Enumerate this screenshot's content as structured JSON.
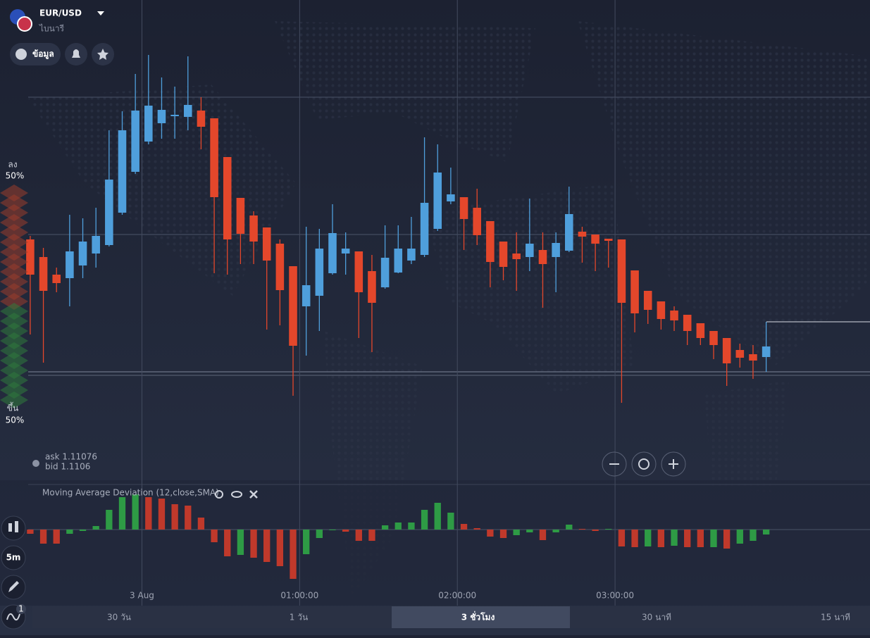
{
  "header": {
    "symbol": "EUR/USD",
    "subtitle": "ไบนารี",
    "info_button": "ข้อมูล"
  },
  "sentiment": {
    "down_label": "ลง",
    "down_pct": "50%",
    "up_label": "ขึ้น",
    "up_pct": "50%"
  },
  "quote": {
    "ask": "ask 1.11076",
    "bid": "bid 1.1106"
  },
  "toolbar": {
    "timeframe": "5m",
    "indicator_count": "1"
  },
  "periods": [
    "30 วัน",
    "1 วัน",
    "3 ชั่วโมง",
    "30 นาที",
    "15 นาที"
  ],
  "active_period": 2,
  "chart_data": [
    {
      "type": "candlestick",
      "up_color": "#4f9fdc",
      "down_color": "#e4472b",
      "x": [
        -45,
        -40,
        -35,
        -30,
        -25,
        -20,
        -15,
        -10,
        -5,
        0,
        5,
        10,
        15,
        20,
        25,
        30,
        35,
        40,
        45,
        50,
        55,
        60,
        65,
        70,
        75,
        80,
        85,
        90,
        95,
        100,
        105,
        110,
        115,
        120,
        125,
        130,
        135,
        140,
        145,
        150,
        155,
        160,
        165,
        170,
        175,
        180,
        185,
        190,
        195,
        200,
        205,
        210,
        215,
        220,
        225,
        230,
        235
      ],
      "open": [
        1.11248,
        1.11223,
        1.11198,
        1.11193,
        1.11211,
        1.11228,
        1.1124,
        1.11286,
        1.11344,
        1.11387,
        1.11413,
        1.11423,
        1.11422,
        1.11431,
        1.1142,
        1.11365,
        1.11307,
        1.11282,
        1.11265,
        1.11242,
        1.1121,
        1.11153,
        1.11168,
        1.112,
        1.11228,
        1.11231,
        1.11203,
        1.1118,
        1.11201,
        1.11218,
        1.11226,
        1.11263,
        1.11302,
        1.11308,
        1.11293,
        1.11274,
        1.11245,
        1.11228,
        1.11223,
        1.11233,
        1.11223,
        1.11232,
        1.11259,
        1.11255,
        1.11249,
        1.11248,
        1.11204,
        1.11175,
        1.1116,
        1.11147,
        1.11141,
        1.11129,
        1.11118,
        1.11108,
        1.11091,
        1.11085,
        1.11081
      ],
      "high": [
        1.11253,
        1.11236,
        1.11208,
        1.11283,
        1.11278,
        1.11293,
        1.11403,
        1.1143,
        1.11483,
        1.1151,
        1.11478,
        1.11465,
        1.11508,
        1.1145,
        1.1142,
        1.11365,
        1.11307,
        1.11288,
        1.11265,
        1.11248,
        1.1121,
        1.11266,
        1.11263,
        1.11298,
        1.11258,
        1.11231,
        1.11226,
        1.11268,
        1.11268,
        1.1128,
        1.11393,
        1.11383,
        1.1135,
        1.11308,
        1.1132,
        1.11274,
        1.11245,
        1.11258,
        1.11306,
        1.11258,
        1.11258,
        1.11323,
        1.11266,
        1.11255,
        1.11249,
        1.11248,
        1.11204,
        1.11175,
        1.1116,
        1.11153,
        1.11141,
        1.11129,
        1.11118,
        1.11108,
        1.111,
        1.11098,
        1.11131
      ],
      "low": [
        1.11113,
        1.11073,
        1.11173,
        1.11153,
        1.11193,
        1.11208,
        1.11238,
        1.11283,
        1.11341,
        1.11383,
        1.11391,
        1.11391,
        1.11403,
        1.11376,
        1.112,
        1.11198,
        1.11213,
        1.11213,
        1.1112,
        1.11126,
        1.11026,
        1.11083,
        1.11118,
        1.11198,
        1.11198,
        1.11108,
        1.11088,
        1.11178,
        1.112,
        1.11213,
        1.11223,
        1.1126,
        1.11298,
        1.11233,
        1.1124,
        1.1118,
        1.1119,
        1.11175,
        1.11203,
        1.11151,
        1.11173,
        1.1123,
        1.11215,
        1.11203,
        1.11208,
        1.11016,
        1.11116,
        1.11128,
        1.1112,
        1.11118,
        1.11098,
        1.11098,
        1.11078,
        1.1104,
        1.11066,
        1.1105,
        1.1106
      ],
      "close": [
        1.11198,
        1.11175,
        1.11186,
        1.11231,
        1.11245,
        1.11253,
        1.11333,
        1.11403,
        1.11431,
        1.11438,
        1.11432,
        1.11425,
        1.11439,
        1.11408,
        1.11308,
        1.11248,
        1.11256,
        1.11245,
        1.11218,
        1.11176,
        1.11097,
        1.11183,
        1.11235,
        1.11257,
        1.11235,
        1.11173,
        1.11158,
        1.11222,
        1.11235,
        1.11235,
        1.113,
        1.11343,
        1.11312,
        1.11277,
        1.11254,
        1.11216,
        1.11209,
        1.1122,
        1.11242,
        1.11213,
        1.11243,
        1.11284,
        1.11252,
        1.11242,
        1.11246,
        1.11158,
        1.11143,
        1.11148,
        1.11135,
        1.11133,
        1.11118,
        1.11108,
        1.11098,
        1.11072,
        1.1108,
        1.11076,
        1.11096
      ],
      "xlim": [
        -54,
        277
      ],
      "ylim": [
        1.10898,
        1.11588
      ],
      "xticks": [
        {
          "value": 0,
          "label": "3 Aug"
        },
        {
          "value": 60,
          "label": "01:00:00"
        },
        {
          "value": 120,
          "label": "02:00:00"
        },
        {
          "value": 180,
          "label": "03:00:00"
        }
      ],
      "grid": true
    },
    {
      "type": "bar",
      "title": "Moving Average Deviation (12,close,SMA)",
      "x": [
        -45,
        -40,
        -35,
        -30,
        -25,
        -20,
        -15,
        -10,
        -5,
        0,
        5,
        10,
        15,
        20,
        25,
        30,
        35,
        40,
        45,
        50,
        55,
        60,
        65,
        70,
        75,
        80,
        85,
        90,
        95,
        100,
        105,
        110,
        115,
        120,
        125,
        130,
        135,
        140,
        145,
        150,
        155,
        160,
        165,
        170,
        175,
        180,
        185,
        190,
        195,
        200,
        205,
        210,
        215,
        220,
        225,
        230,
        235
      ],
      "values": [
        -6,
        -20,
        -20,
        -6,
        -2,
        5,
        28,
        46,
        50,
        46,
        44,
        36,
        34,
        17,
        -18,
        -38,
        -36,
        -40,
        -46,
        -52,
        -70,
        -35,
        -12,
        -1,
        -3,
        -16,
        -16,
        6,
        10,
        10,
        28,
        38,
        24,
        8,
        2,
        -10,
        -12,
        -8,
        -4,
        -15,
        -4,
        7,
        1,
        -2,
        1,
        -24,
        -25,
        -24,
        -25,
        -23,
        -25,
        -25,
        -25,
        -27,
        -20,
        -16,
        -7
      ],
      "colors": [
        "#c0392b",
        "#c0392b",
        "#c0392b",
        "#2e9b45",
        "#2e9b45",
        "#2e9b45",
        "#2e9b45",
        "#2e9b45",
        "#2e9b45",
        "#c0392b",
        "#c0392b",
        "#c0392b",
        "#c0392b",
        "#c0392b",
        "#c0392b",
        "#c0392b",
        "#2e9b45",
        "#c0392b",
        "#c0392b",
        "#c0392b",
        "#c0392b",
        "#2e9b45",
        "#2e9b45",
        "#2e9b45",
        "#c0392b",
        "#c0392b",
        "#c0392b",
        "#2e9b45",
        "#2e9b45",
        "#2e9b45",
        "#2e9b45",
        "#2e9b45",
        "#2e9b45",
        "#c0392b",
        "#c0392b",
        "#c0392b",
        "#c0392b",
        "#2e9b45",
        "#2e9b45",
        "#c0392b",
        "#2e9b45",
        "#2e9b45",
        "#c0392b",
        "#c0392b",
        "#2e9b45",
        "#c0392b",
        "#c0392b",
        "#2e9b45",
        "#c0392b",
        "#2e9b45",
        "#c0392b",
        "#c0392b",
        "#2e9b45",
        "#c0392b",
        "#2e9b45",
        "#2e9b45",
        "#2e9b45"
      ],
      "xlim": [
        -54,
        277
      ],
      "ylim": [
        -108,
        64
      ]
    }
  ]
}
